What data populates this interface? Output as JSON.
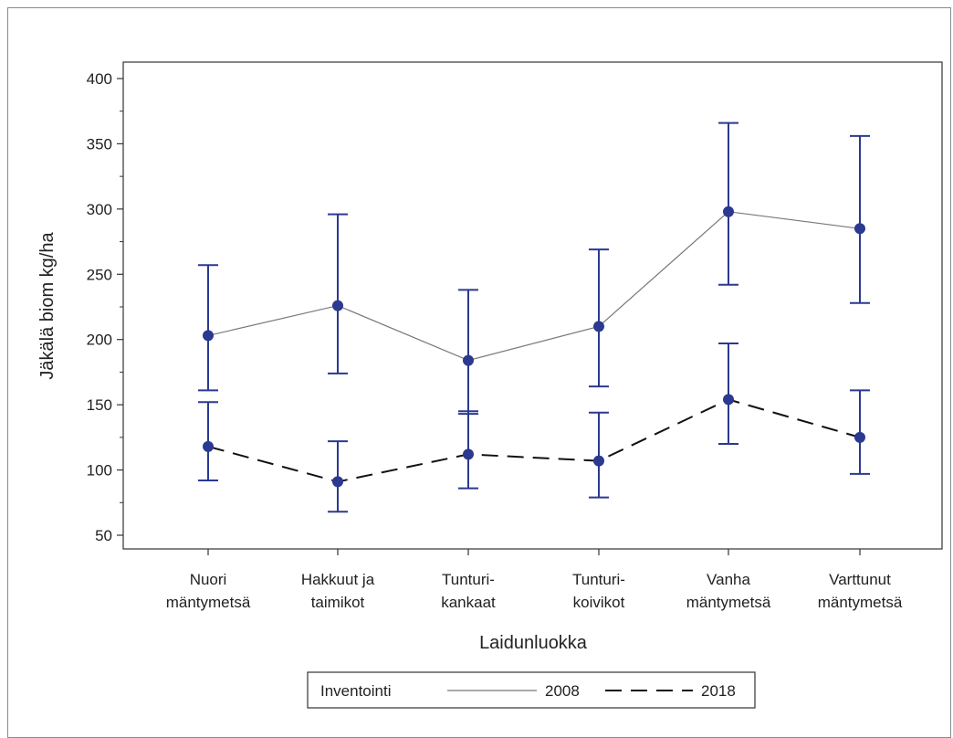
{
  "chart_data": {
    "type": "line",
    "title": "",
    "xlabel": "Laidunluokka",
    "ylabel": "Jäkälä biom kg/ha",
    "ylim": [
      40,
      410
    ],
    "yticks": [
      50,
      100,
      150,
      200,
      250,
      300,
      350,
      400
    ],
    "categories": [
      [
        "Nuori",
        "mäntymetsä"
      ],
      [
        "Hakkuut ja",
        "taimikot"
      ],
      [
        "Tunturi-",
        "kankaat"
      ],
      [
        "Tunturi-",
        "koivikot"
      ],
      [
        "Vanha",
        "mäntymetsä"
      ],
      [
        "Varttunut",
        "mäntymetsä"
      ]
    ],
    "series": [
      {
        "name": "2008",
        "style": "solid",
        "values": [
          203,
          226,
          184,
          210,
          298,
          285
        ],
        "lower": [
          161,
          174,
          143,
          164,
          242,
          228
        ],
        "upper": [
          257,
          296,
          238,
          269,
          366,
          356
        ]
      },
      {
        "name": "2018",
        "style": "dashed",
        "values": [
          118,
          91,
          112,
          107,
          154,
          125
        ],
        "lower": [
          92,
          68,
          86,
          79,
          120,
          97
        ],
        "upper": [
          152,
          122,
          145,
          144,
          197,
          161
        ]
      }
    ],
    "legend": {
      "title": "Inventointi",
      "position": "bottom"
    },
    "grid": false,
    "colors": {
      "marker": "#2b3990",
      "errorbar": "#2b3990",
      "line_2008": "#777777",
      "line_2018": "#111111"
    }
  }
}
